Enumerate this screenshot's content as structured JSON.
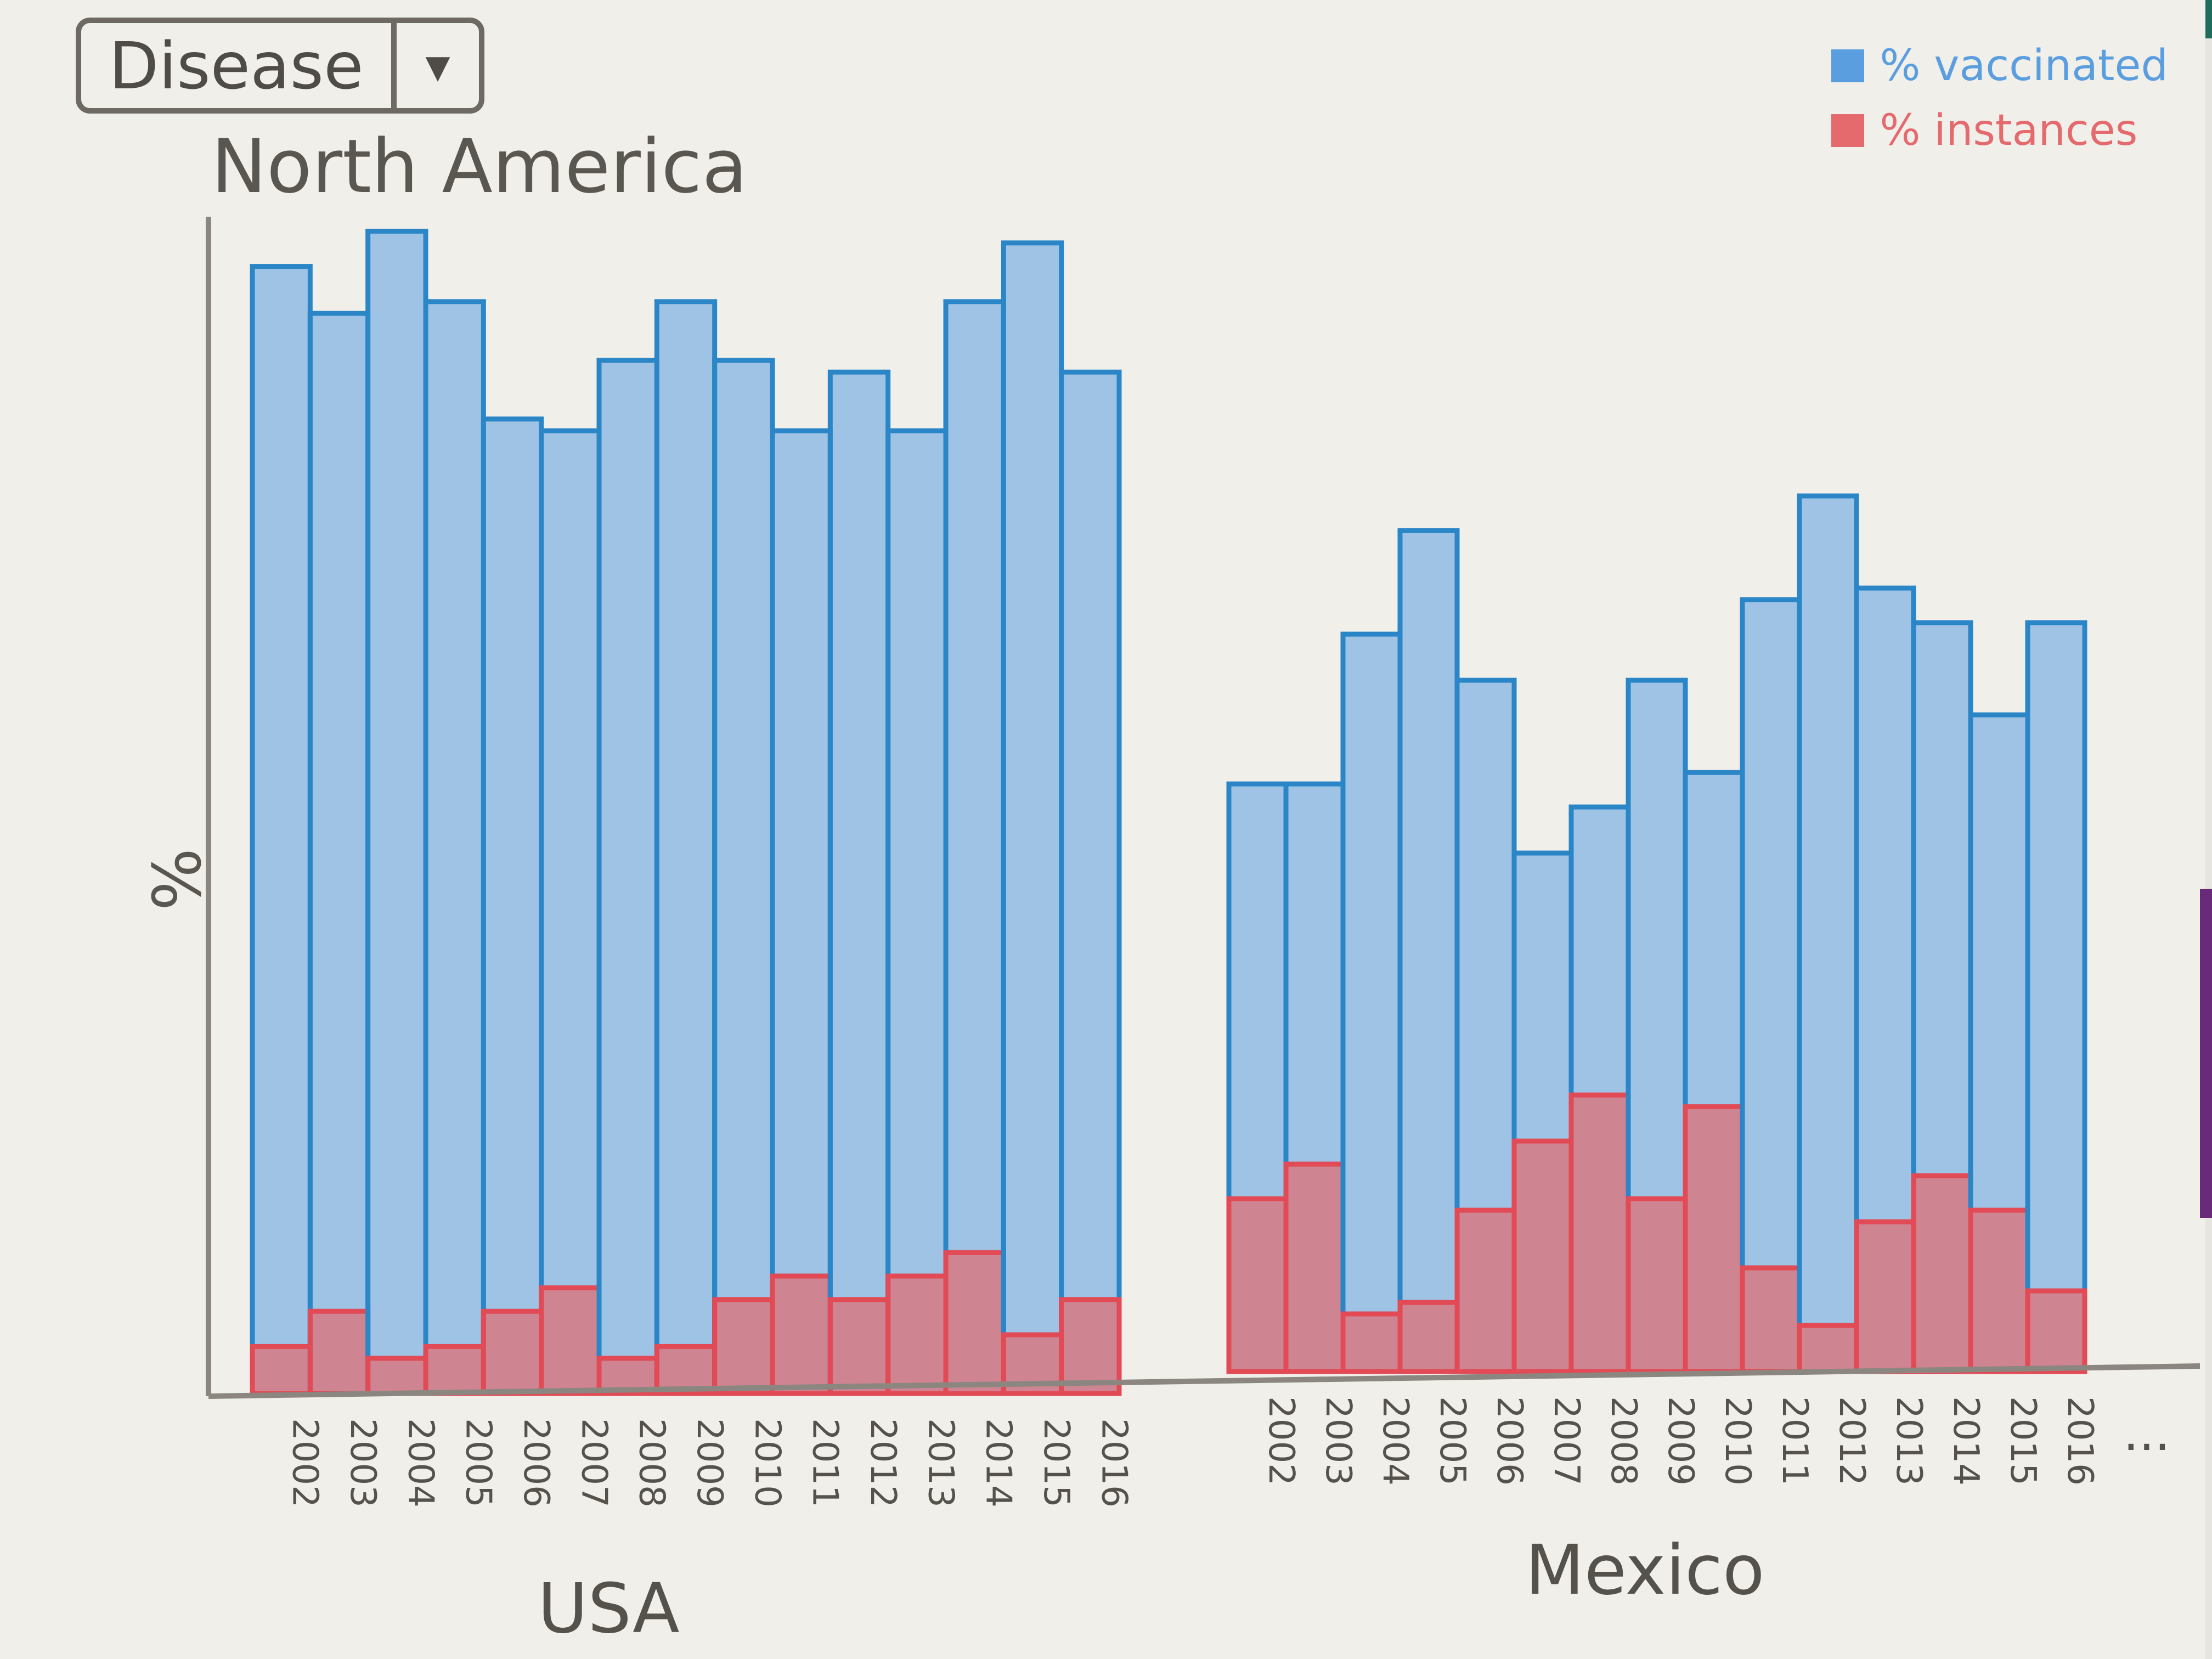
{
  "dropdown": {
    "label": "Disease",
    "toggle_icon": "chevron-down-icon"
  },
  "title": "North America",
  "y_axis_label": "%",
  "legend": {
    "vaccinated_label": "% vaccinated",
    "instances_label": "% instances",
    "vaccinated_color": "#5b9ee0",
    "instances_color": "#e46a6e"
  },
  "ellipsis": "...",
  "chart_data": {
    "type": "bar",
    "title": "North America",
    "ylabel": "%",
    "ylim": [
      0,
      100
    ],
    "groups": [
      {
        "name": "USA",
        "categories": [
          "2002",
          "2003",
          "2004",
          "2005",
          "2006",
          "2007",
          "2008",
          "2009",
          "2010",
          "2011",
          "2012",
          "2013",
          "2014",
          "2015",
          "2016"
        ],
        "series": [
          {
            "name": "% vaccinated",
            "values": [
              96,
              92,
              99,
              93,
              83,
              82,
              88,
              93,
              88,
              82,
              87,
              82,
              93,
              98,
              87
            ]
          },
          {
            "name": "% instances",
            "values": [
              4,
              7,
              3,
              4,
              7,
              9,
              3,
              4,
              8,
              10,
              8,
              10,
              12,
              5,
              8
            ]
          }
        ]
      },
      {
        "name": "Mexico",
        "categories": [
          "2002",
          "2003",
          "2004",
          "2005",
          "2006",
          "2007",
          "2008",
          "2009",
          "2010",
          "2011",
          "2012",
          "2013",
          "2014",
          "2015",
          "2016"
        ],
        "series": [
          {
            "name": "% vaccinated",
            "values": [
              51,
              51,
              64,
              73,
              60,
              45,
              49,
              60,
              52,
              67,
              76,
              68,
              65,
              57,
              65
            ]
          },
          {
            "name": "% instances",
            "values": [
              15,
              18,
              5,
              6,
              14,
              20,
              24,
              15,
              23,
              9,
              4,
              13,
              17,
              14,
              7
            ]
          }
        ]
      }
    ]
  }
}
